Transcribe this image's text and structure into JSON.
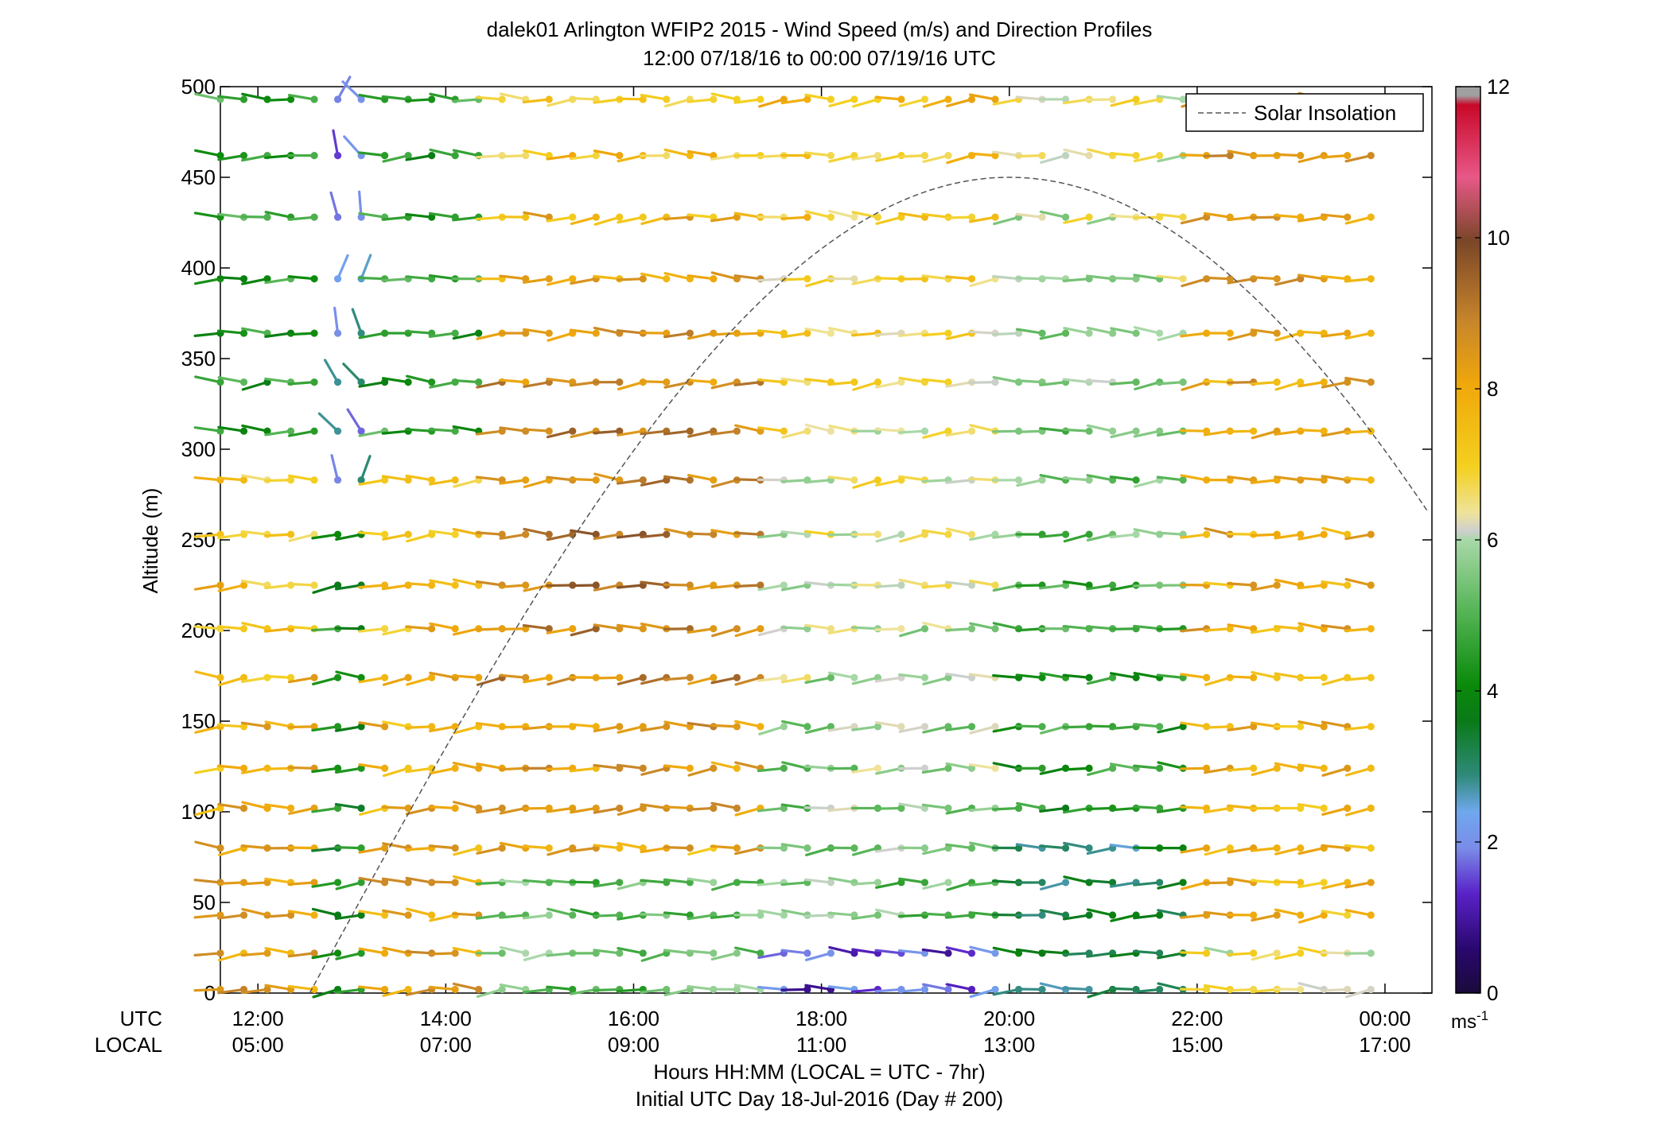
{
  "chart_data": {
    "type": "wind-barb-profile",
    "title_line1": "dalek01 Arlington WFIP2 2015 - Wind Speed (m/s) and Direction Profiles",
    "title_line2": "12:00 07/18/16 to 00:00 07/19/16  UTC",
    "ylabel": "Altitude (m)",
    "xlabel_line1": "Hours HH:MM  (LOCAL = UTC - 7hr)",
    "xlabel_line2": "Initial UTC Day 18-Jul-2016 (Day # 200)",
    "x_row_labels": [
      "UTC",
      "LOCAL"
    ],
    "xlim_hours_utc": [
      11.6,
      24.5
    ],
    "ylim": [
      0,
      500
    ],
    "y_ticks": [
      "0",
      "50",
      "100",
      "150",
      "200",
      "250",
      "300",
      "350",
      "400",
      "450",
      "500"
    ],
    "utc_ticks": [
      "12:00",
      "14:00",
      "16:00",
      "18:00",
      "20:00",
      "22:00",
      "00:00"
    ],
    "local_ticks": [
      "05:00",
      "07:00",
      "09:00",
      "11:00",
      "13:00",
      "15:00",
      "17:00"
    ],
    "altitudes_m": [
      2,
      22,
      43,
      61,
      80,
      102,
      124,
      147,
      174,
      201,
      225,
      253,
      283,
      310,
      337,
      364,
      394,
      428,
      462,
      493
    ],
    "time_start_utc": 11.6,
    "time_step_h": 0.25,
    "legend": "Solar Insolation",
    "solar_peak_altitude_m": 450,
    "solar_peak_hour_utc": 20.0,
    "colorbar": {
      "ticks": [
        "0",
        "2",
        "4",
        "6",
        "8",
        "10",
        "12"
      ],
      "unit": "ms",
      "unit_exp": "-1",
      "range": [
        0,
        12
      ]
    }
  }
}
